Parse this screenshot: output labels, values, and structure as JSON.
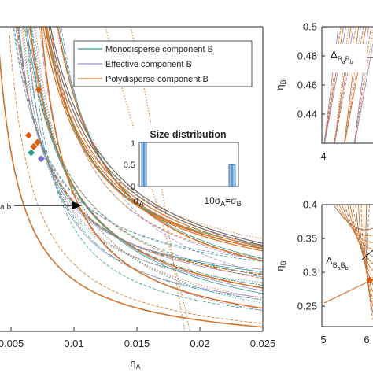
{
  "colors": {
    "monodisperse": "#2a9d8f",
    "effective": "#9b8ec4",
    "polydisperse": "#d4732a",
    "diamond_orange": "#d95f0e",
    "diamond_teal": "#2a9d8f",
    "diamond_purple": "#7b6fd0",
    "hist_bar": "#9cc3e6",
    "hist_edge": "#1f5fa8",
    "axis": "#262626"
  },
  "chart_data": [
    {
      "type": "line",
      "panel": "main",
      "xlabel": "η_A",
      "ylabel": "",
      "xlim": [
        0.0025,
        0.025
      ],
      "ylim": [
        0.2,
        0.5
      ],
      "xticks": [
        0.005,
        0.01,
        0.015,
        0.02,
        0.025
      ],
      "xtick_labels": [
        "0.005",
        "0.01",
        "0.015",
        "0.02",
        "0.025"
      ],
      "legend_placement": "top-right",
      "legend": [
        {
          "name": "Monodisperse component B",
          "color_key": "monodisperse"
        },
        {
          "name": "Effective component B",
          "color_key": "effective"
        },
        {
          "name": "Polydisperse component B",
          "color_key": "polydisperse"
        }
      ],
      "annotation": {
        "text": "Δ_{BaBb}",
        "visible_part": "a b",
        "arrow": "right"
      },
      "markers": [
        {
          "x": 0.0064,
          "y": 0.393,
          "color_key": "diamond_orange"
        },
        {
          "x": 0.0068,
          "y": 0.382,
          "color_key": "diamond_orange"
        },
        {
          "x": 0.0072,
          "y": 0.438,
          "color_key": "diamond_orange"
        },
        {
          "x": 0.0071,
          "y": 0.386,
          "color_key": "diamond_orange"
        },
        {
          "x": 0.0066,
          "y": 0.376,
          "color_key": "diamond_teal"
        },
        {
          "x": 0.0074,
          "y": 0.37,
          "color_key": "diamond_purple"
        }
      ],
      "inset": {
        "title": "Size distribution",
        "yticks": [
          0,
          0.5,
          1
        ],
        "ytick_labels": [
          "0",
          "0.5",
          "1"
        ],
        "xtick_labels": [
          "σ_A",
          "10σ_A=σ_B"
        ],
        "bars": [
          {
            "group": "A",
            "heights": [
              1.0,
              1.0
            ]
          },
          {
            "group": "B",
            "heights": [
              0.5,
              0.5
            ]
          }
        ]
      }
    },
    {
      "type": "line",
      "panel": "top-right",
      "ylabel": "η_B",
      "ylim": [
        0.42,
        0.5
      ],
      "yticks": [
        0.44,
        0.46,
        0.48,
        0.5
      ],
      "ytick_labels": [
        "0.44",
        "0.46",
        "0.48",
        "0.5"
      ],
      "xticks": [
        4
      ],
      "xtick_labels": [
        "4"
      ],
      "annotation": "Δ_{BaBb}"
    },
    {
      "type": "line",
      "panel": "bottom-right",
      "ylabel": "η_B",
      "ylim": [
        0.22,
        0.4
      ],
      "yticks": [
        0.25,
        0.3,
        0.35,
        0.4
      ],
      "ytick_labels": [
        "0.25",
        "0.3",
        "0.35",
        "0.4"
      ],
      "xticks": [
        5,
        6
      ],
      "xtick_labels": [
        "5",
        "6"
      ],
      "annotation": "Δ_{BaBb}"
    }
  ]
}
